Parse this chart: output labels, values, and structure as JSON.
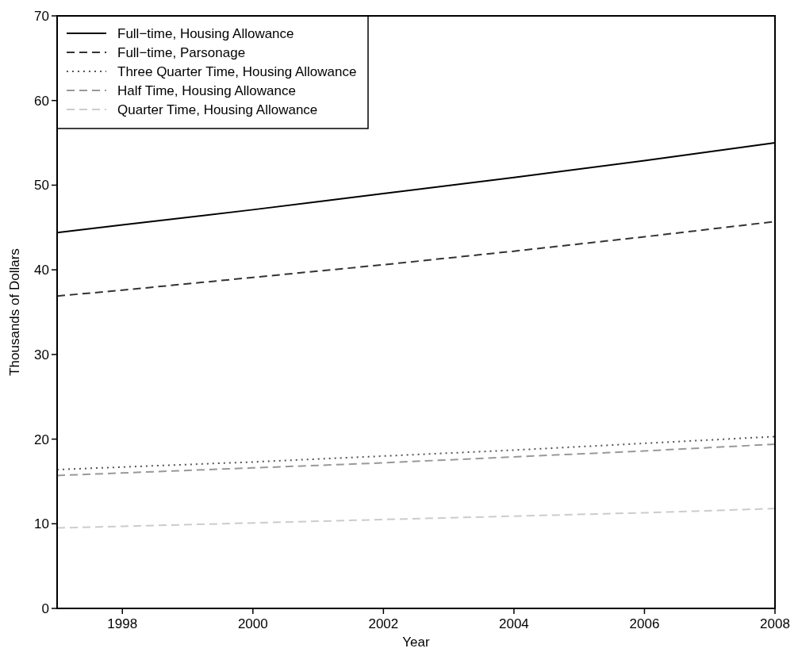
{
  "chart_data": {
    "type": "line",
    "xlabel": "Year",
    "ylabel": "Thousands of Dollars",
    "x": [
      1997,
      1998,
      2000,
      2002,
      2004,
      2006,
      2008
    ],
    "xlim": [
      1997,
      2008
    ],
    "xticks": [
      1998,
      2000,
      2002,
      2004,
      2006,
      2008
    ],
    "ylim": [
      0,
      70
    ],
    "yticks": [
      0,
      10,
      20,
      30,
      40,
      50,
      60,
      70
    ],
    "grid": false,
    "legend": "top left",
    "marker": "none",
    "series": [
      {
        "name": "Full−time, Housing Allowance",
        "color": "#000000",
        "line_style": "solid",
        "values": [
          44.4,
          45.3,
          47.1,
          49.0,
          50.9,
          52.9,
          55.0
        ]
      },
      {
        "name": "Full−time, Parsonage",
        "color": "#333333",
        "line_style": "dashed",
        "values": [
          36.9,
          37.6,
          39.1,
          40.6,
          42.2,
          43.9,
          45.7
        ]
      },
      {
        "name": "Three Quarter Time, Housing Allowance",
        "color": "#555555",
        "line_style": "dotted",
        "values": [
          16.4,
          16.7,
          17.3,
          18.0,
          18.7,
          19.5,
          20.3
        ]
      },
      {
        "name": "Half Time, Housing Allowance",
        "color": "#999999",
        "line_style": "dashed",
        "values": [
          15.7,
          16.0,
          16.6,
          17.2,
          17.9,
          18.6,
          19.4
        ]
      },
      {
        "name": "Quarter Time, Housing Allowance",
        "color": "#cccccc",
        "line_style": "dashed",
        "values": [
          9.5,
          9.7,
          10.1,
          10.5,
          10.9,
          11.3,
          11.8
        ]
      }
    ]
  }
}
